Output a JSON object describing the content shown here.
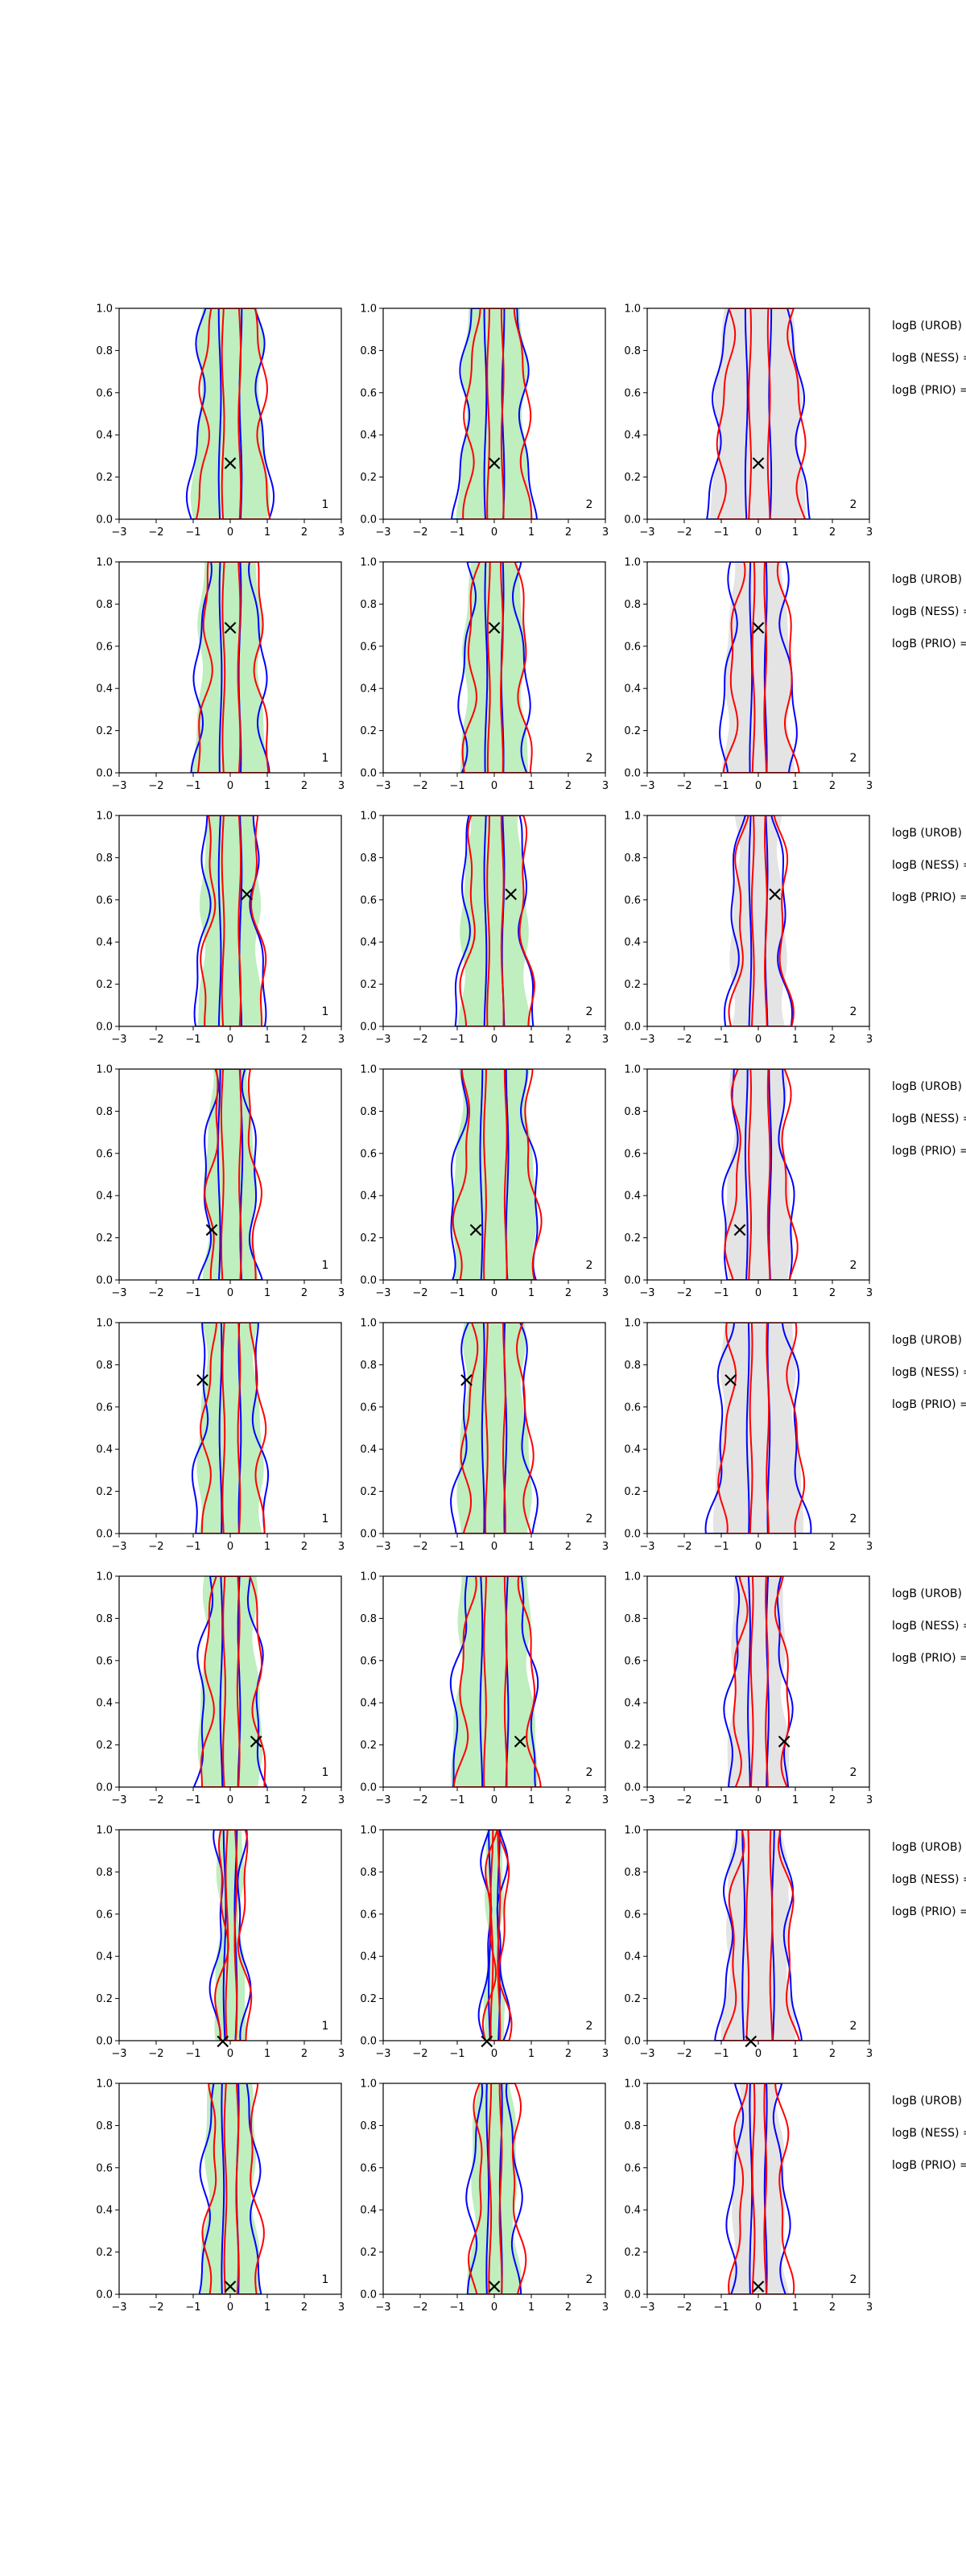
{
  "figure": {
    "rows": [
      {
        "marker": {
          "x": 0.0,
          "y": 0.27
        },
        "panel_tags": [
          "1",
          "2",
          "2"
        ],
        "side_labels": [
          "logB (UROB) =",
          "logB (NESS) =",
          "logB (PRIO) ="
        ]
      },
      {
        "marker": {
          "x": 0.0,
          "y": 0.69
        },
        "panel_tags": [
          "1",
          "2",
          "2"
        ],
        "side_labels": [
          "logB (UROB) =",
          "logB (NESS) =",
          "logB (PRIO) ="
        ]
      },
      {
        "marker": {
          "x": 0.45,
          "y": 0.63
        },
        "panel_tags": [
          "1",
          "2",
          "2"
        ],
        "side_labels": [
          "logB (UROB) =",
          "logB (NESS) =",
          "logB (PRIO) ="
        ]
      },
      {
        "marker": {
          "x": -0.5,
          "y": 0.24
        },
        "panel_tags": [
          "1",
          "2",
          "2"
        ],
        "side_labels": [
          "logB (UROB) =",
          "logB (NESS) =",
          "logB (PRIO) ="
        ]
      },
      {
        "marker": {
          "x": -0.75,
          "y": 0.73
        },
        "panel_tags": [
          "1",
          "2",
          "2"
        ],
        "side_labels": [
          "logB (UROB) =",
          "logB (NESS) =",
          "logB (PRIO) ="
        ]
      },
      {
        "marker": {
          "x": 0.7,
          "y": 0.22
        },
        "panel_tags": [
          "1",
          "2",
          "2"
        ],
        "side_labels": [
          "logB (UROB) =",
          "logB (NESS) =",
          "logB (PRIO) ="
        ]
      },
      {
        "marker": {
          "x": -0.2,
          "y": 0.0
        },
        "panel_tags": [
          "1",
          "2",
          "2"
        ],
        "side_labels": [
          "logB (UROB) =",
          "logB (NESS) =",
          "logB (PRIO) ="
        ]
      },
      {
        "marker": {
          "x": 0.0,
          "y": 0.04
        },
        "panel_tags": [
          "1",
          "2",
          "2"
        ],
        "side_labels": [
          "logB (UROB) =",
          "logB (NESS) =",
          "logB (PRIO) ="
        ]
      }
    ]
  },
  "chart_data": {
    "type": "contour",
    "grid": "3 columns x 8 rows",
    "xlim": [
      -3,
      3
    ],
    "ylim": [
      0,
      1
    ],
    "xticks": [
      "−3",
      "−2",
      "−1",
      "0",
      "1",
      "2",
      "3"
    ],
    "yticks": [
      "0.0",
      "0.2",
      "0.4",
      "0.6",
      "0.8",
      "1.0"
    ],
    "contour_colors": {
      "blue": "#0000ff",
      "red": "#ff0000"
    },
    "fill_colors": {
      "column_1": "#bfeebf",
      "column_2": "#bfeebf",
      "column_3": "#e4e4e4"
    },
    "marker_symbol": "×",
    "widths_by_row": [
      {
        "outer": [
          1.05,
          1.0,
          1.35
        ],
        "inner": [
          0.28,
          0.24,
          0.32
        ]
      },
      {
        "outer": [
          1.0,
          0.95,
          1.0
        ],
        "inner": [
          0.26,
          0.22,
          0.2
        ]
      },
      {
        "outer": [
          0.9,
          1.0,
          0.8
        ],
        "inner": [
          0.28,
          0.24,
          0.22
        ]
      },
      {
        "outer": [
          0.75,
          1.25,
          0.95
        ],
        "inner": [
          0.3,
          0.35,
          0.32
        ]
      },
      {
        "outer": [
          0.95,
          1.05,
          1.25
        ],
        "inner": [
          0.26,
          0.3,
          0.28
        ]
      },
      {
        "outer": [
          0.9,
          1.2,
          0.85
        ],
        "inner": [
          0.24,
          0.35,
          0.25
        ]
      },
      {
        "outer": [
          0.4,
          0.25,
          1.0
        ],
        "inner": [
          0.15,
          0.12,
          0.4
        ]
      },
      {
        "outer": [
          0.8,
          0.7,
          0.8
        ],
        "inner": [
          0.2,
          0.18,
          0.2
        ]
      }
    ]
  }
}
